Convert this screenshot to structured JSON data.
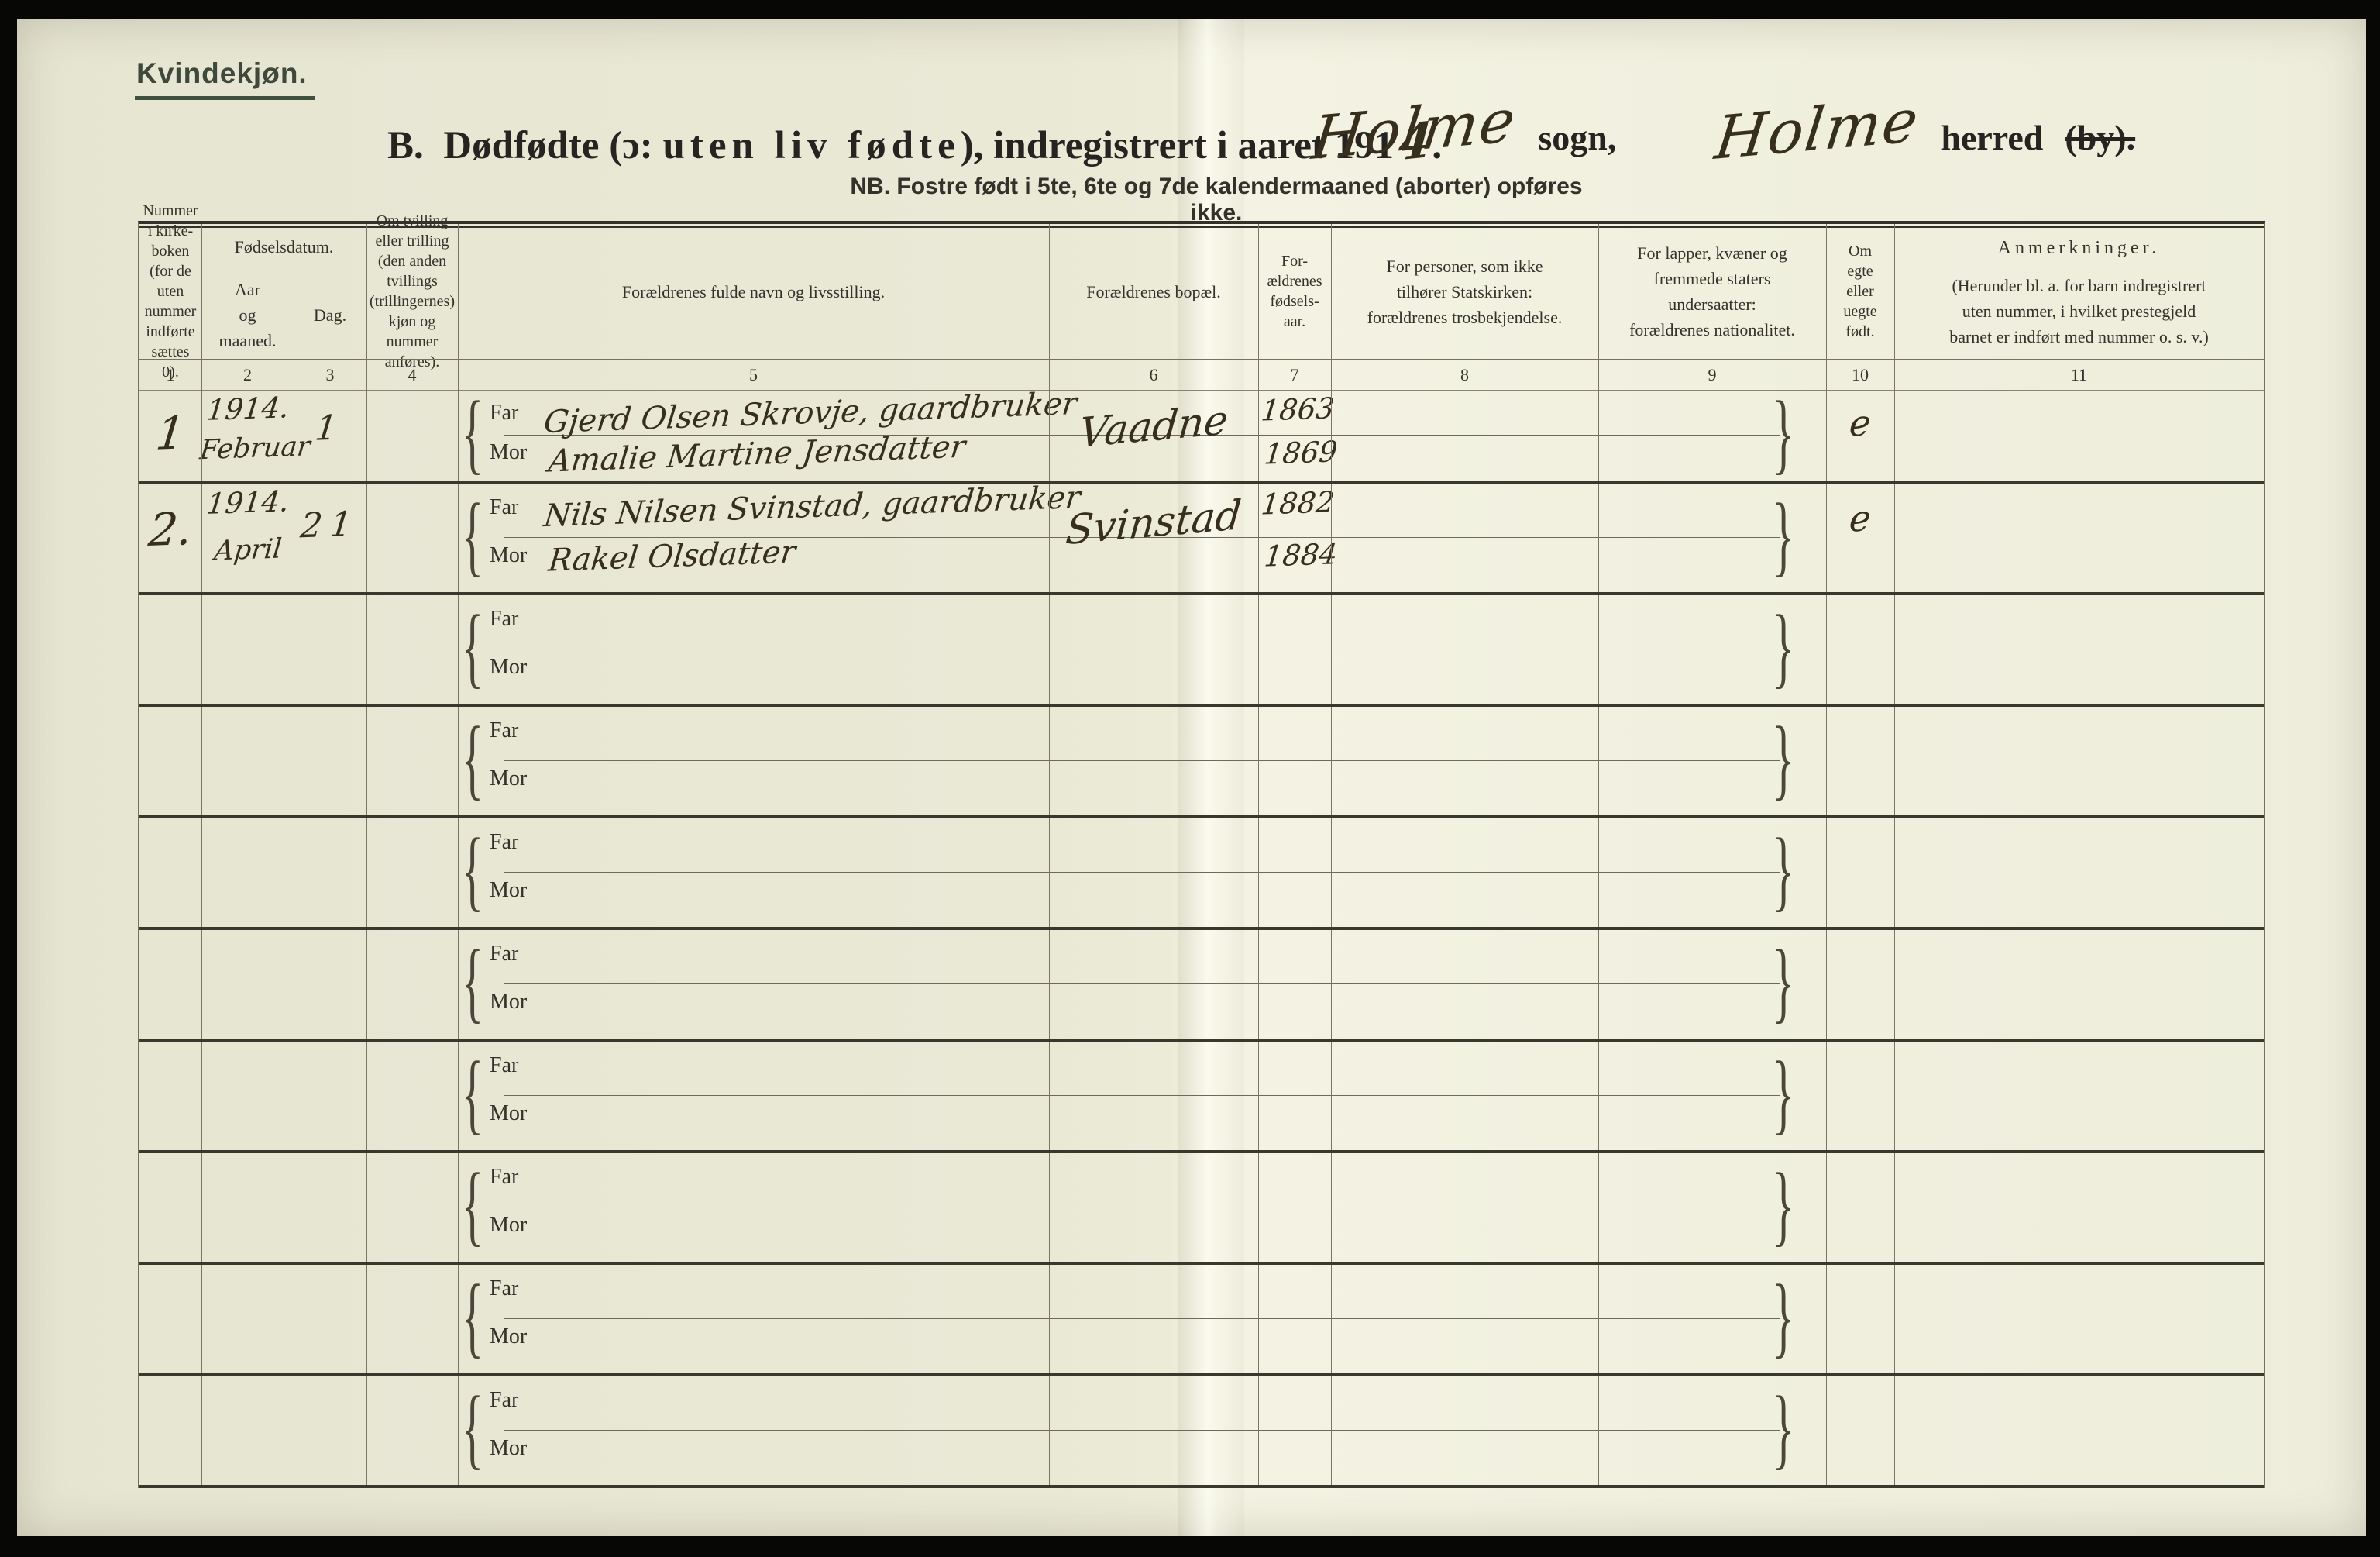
{
  "page": {
    "corner_label": "Kvindekjøn.",
    "title": {
      "prefix": "B.",
      "part1": "Dødfødte (ɔ:",
      "spaced": "uten liv fødte",
      "part2": "), indregistrert i aaret 191",
      "year_handwritten": "4",
      "suffix": "."
    },
    "parish_handwritten": "Holme",
    "parish_label": "sogn,",
    "herred_handwritten": "Holme",
    "herred_label": "herred",
    "herred_struck": "(by).",
    "nb_note": "NB.  Fostre født i 5te, 6te og 7de kalendermaaned (aborter) opføres ikke."
  },
  "table": {
    "far_label": "Far",
    "mor_label": "Mor",
    "headers": {
      "c1": "Nummer\ni kirke-\nboken\n(for de\nuten\nnummer\nindførte\nsættes\n0).",
      "c2_group": "Fødselsdatum.",
      "c2": "Aar\nog\nmaaned.",
      "c3": "Dag.",
      "c4": "Om tvilling\neller trilling\n(den anden\ntvillings\n(trillingernes)\nkjøn og\nnummer\nanføres).",
      "c5": "Forældrenes fulde navn og livsstilling.",
      "c6": "Forældrenes bopæl.",
      "c7": "For-\nældrenes\nfødsels-\naar.",
      "c8": "For personer, som ikke\ntilhører Statskirken:\nforældrenes trosbekjendelse.",
      "c9": "For lapper, kvæner og\nfremmede staters\nundersaatter:\nforældrenes nationalitet.",
      "c10": "Om\negte\neller\nuegte\nfødt.",
      "c11_title": "Anmerkninger.",
      "c11_note": "(Herunder bl. a. for barn indregistrert\nuten nummer, i hvilket prestegjeld\nbarnet er indført med nummer o. s. v.)"
    },
    "column_numbers": [
      "1",
      "2",
      "3",
      "4",
      "5",
      "6",
      "7",
      "8",
      "9",
      "10",
      "11"
    ],
    "rows": [
      {
        "no": "1",
        "year": "1914.",
        "month": "Februar",
        "day": "1",
        "twin": "",
        "far": "Gjerd Olsen Skrovje, gaardbruker",
        "mor": "Amalie Martine Jensdatter",
        "bopael": "Vaadne",
        "far_year": "1863",
        "mor_year": "1869",
        "tros": "",
        "nat": "",
        "egte": "e",
        "anm": ""
      },
      {
        "no": "2.",
        "year": "1914.",
        "month": "April",
        "day": "21",
        "twin": "",
        "far": "Nils Nilsen Svinstad, gaardbruker",
        "mor": "Rakel Olsdatter",
        "bopael": "Svinstad",
        "far_year": "1882",
        "mor_year": "1884",
        "tros": "",
        "nat": "",
        "egte": "e",
        "anm": ""
      },
      {
        "no": "",
        "year": "",
        "month": "",
        "day": "",
        "twin": "",
        "far": "",
        "mor": "",
        "bopael": "",
        "far_year": "",
        "mor_year": "",
        "tros": "",
        "nat": "",
        "egte": "",
        "anm": ""
      },
      {
        "no": "",
        "year": "",
        "month": "",
        "day": "",
        "twin": "",
        "far": "",
        "mor": "",
        "bopael": "",
        "far_year": "",
        "mor_year": "",
        "tros": "",
        "nat": "",
        "egte": "",
        "anm": ""
      },
      {
        "no": "",
        "year": "",
        "month": "",
        "day": "",
        "twin": "",
        "far": "",
        "mor": "",
        "bopael": "",
        "far_year": "",
        "mor_year": "",
        "tros": "",
        "nat": "",
        "egte": "",
        "anm": ""
      },
      {
        "no": "",
        "year": "",
        "month": "",
        "day": "",
        "twin": "",
        "far": "",
        "mor": "",
        "bopael": "",
        "far_year": "",
        "mor_year": "",
        "tros": "",
        "nat": "",
        "egte": "",
        "anm": ""
      },
      {
        "no": "",
        "year": "",
        "month": "",
        "day": "",
        "twin": "",
        "far": "",
        "mor": "",
        "bopael": "",
        "far_year": "",
        "mor_year": "",
        "tros": "",
        "nat": "",
        "egte": "",
        "anm": ""
      },
      {
        "no": "",
        "year": "",
        "month": "",
        "day": "",
        "twin": "",
        "far": "",
        "mor": "",
        "bopael": "",
        "far_year": "",
        "mor_year": "",
        "tros": "",
        "nat": "",
        "egte": "",
        "anm": ""
      },
      {
        "no": "",
        "year": "",
        "month": "",
        "day": "",
        "twin": "",
        "far": "",
        "mor": "",
        "bopael": "",
        "far_year": "",
        "mor_year": "",
        "tros": "",
        "nat": "",
        "egte": "",
        "anm": ""
      },
      {
        "no": "",
        "year": "",
        "month": "",
        "day": "",
        "twin": "",
        "far": "",
        "mor": "",
        "bopael": "",
        "far_year": "",
        "mor_year": "",
        "tros": "",
        "nat": "",
        "egte": "",
        "anm": ""
      }
    ]
  }
}
